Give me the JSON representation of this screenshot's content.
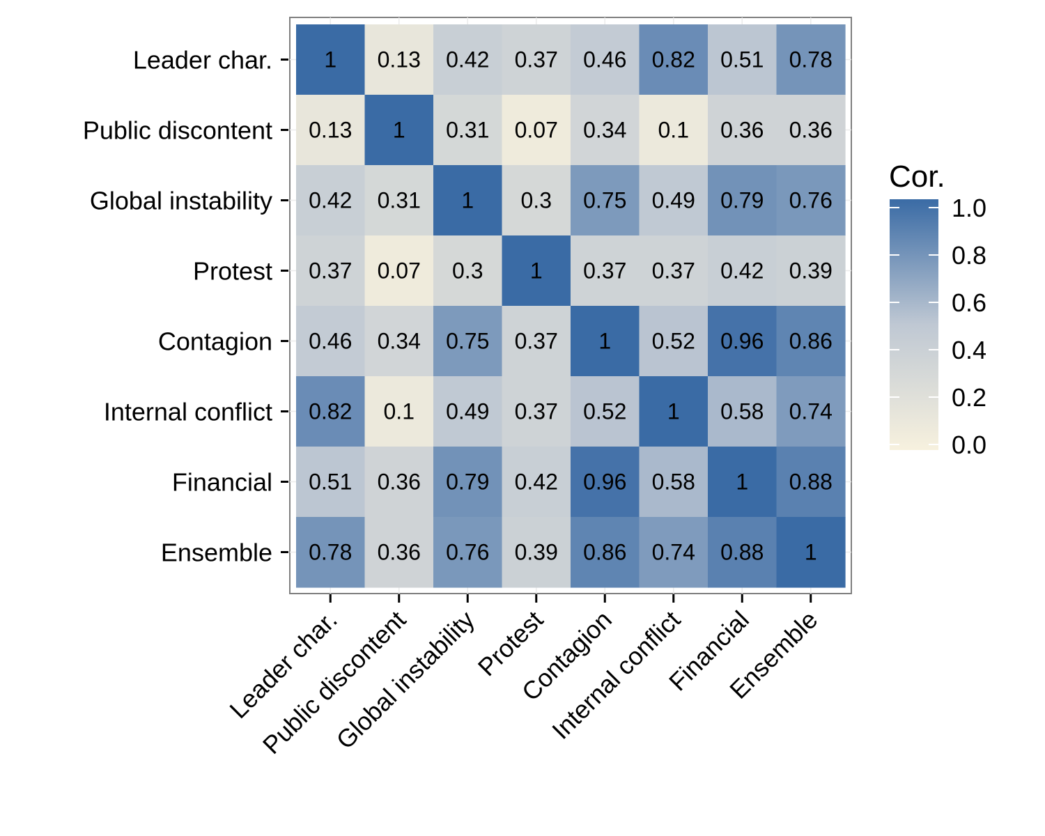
{
  "chart_data": {
    "type": "heatmap",
    "categories": [
      "Leader char.",
      "Public discontent",
      "Global instability",
      "Protest",
      "Contagion",
      "Internal conflict",
      "Financial",
      "Ensemble"
    ],
    "values": [
      [
        1,
        0.13,
        0.42,
        0.37,
        0.46,
        0.82,
        0.51,
        0.78
      ],
      [
        0.13,
        1,
        0.31,
        0.07,
        0.34,
        0.1,
        0.36,
        0.36
      ],
      [
        0.42,
        0.31,
        1,
        0.3,
        0.75,
        0.49,
        0.79,
        0.76
      ],
      [
        0.37,
        0.07,
        0.3,
        1,
        0.37,
        0.37,
        0.42,
        0.39
      ],
      [
        0.46,
        0.34,
        0.75,
        0.37,
        1,
        0.52,
        0.96,
        0.86
      ],
      [
        0.82,
        0.1,
        0.49,
        0.37,
        0.52,
        1,
        0.58,
        0.74
      ],
      [
        0.51,
        0.36,
        0.79,
        0.42,
        0.96,
        0.58,
        1,
        0.88
      ],
      [
        0.78,
        0.36,
        0.76,
        0.39,
        0.86,
        0.74,
        0.88,
        1
      ]
    ],
    "legend": {
      "title": "Cor.",
      "ticks": [
        "0.0",
        "0.2",
        "0.4",
        "0.6",
        "0.8",
        "1.0"
      ],
      "range": [
        0,
        1
      ],
      "placement": "right"
    },
    "colors": {
      "low": "#f7f1de",
      "mid": "#bfc8d3",
      "high": "#3a6ba5"
    },
    "grid": true
  }
}
